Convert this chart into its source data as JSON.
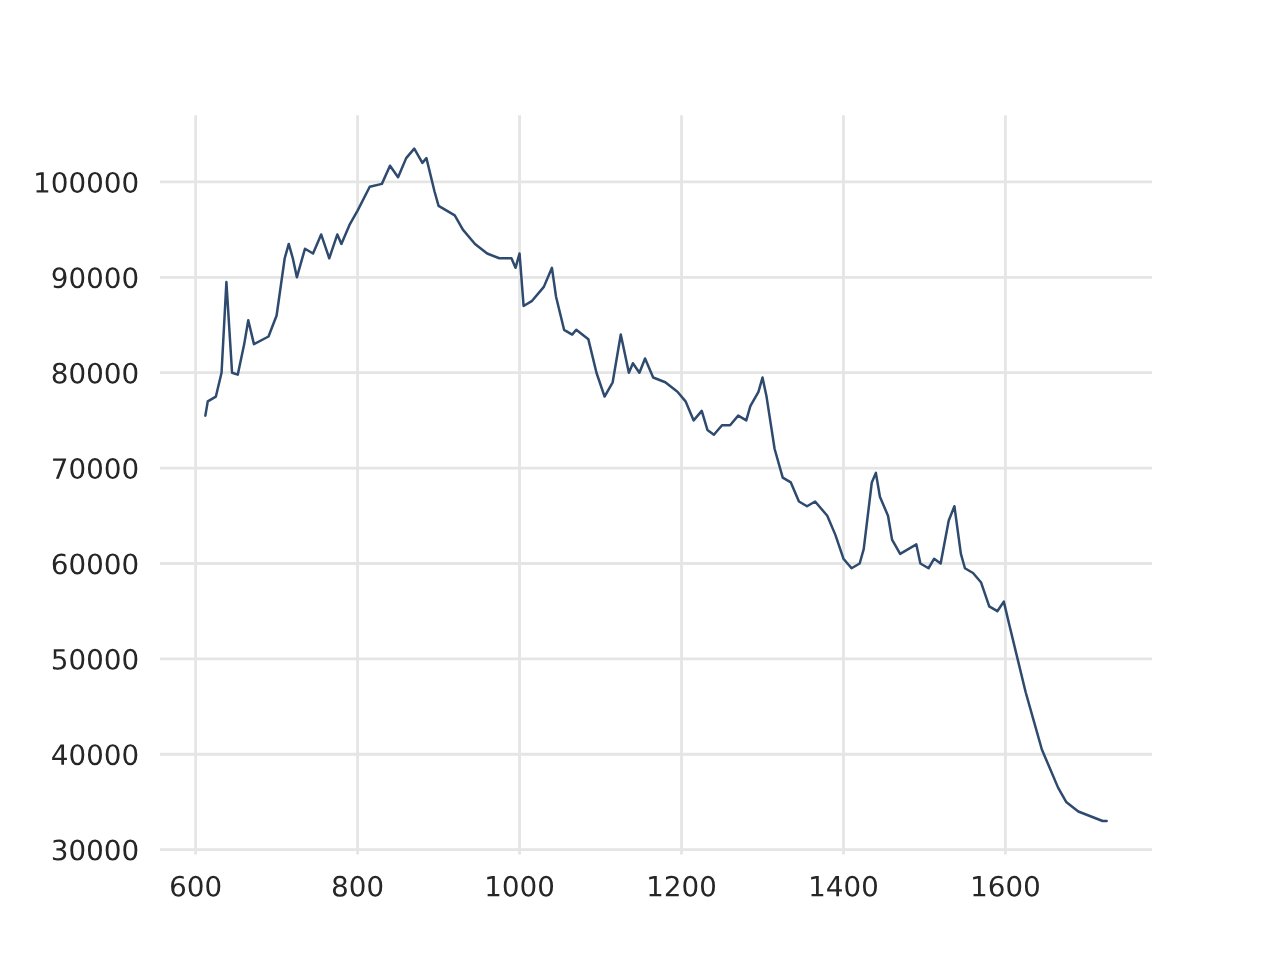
{
  "chart_data": {
    "type": "line",
    "x": [
      612,
      615,
      625,
      632,
      638,
      645,
      652,
      660,
      665,
      672,
      690,
      700,
      710,
      715,
      720,
      725,
      735,
      745,
      755,
      765,
      775,
      780,
      790,
      800,
      815,
      830,
      840,
      850,
      860,
      870,
      880,
      885,
      895,
      900,
      910,
      920,
      930,
      945,
      960,
      975,
      990,
      995,
      1000,
      1005,
      1015,
      1030,
      1040,
      1045,
      1055,
      1065,
      1070,
      1085,
      1095,
      1105,
      1115,
      1125,
      1135,
      1140,
      1148,
      1155,
      1165,
      1180,
      1195,
      1205,
      1215,
      1225,
      1232,
      1240,
      1250,
      1260,
      1270,
      1280,
      1285,
      1295,
      1300,
      1305,
      1315,
      1325,
      1335,
      1345,
      1355,
      1365,
      1380,
      1390,
      1400,
      1410,
      1420,
      1425,
      1435,
      1440,
      1445,
      1455,
      1460,
      1470,
      1480,
      1490,
      1495,
      1505,
      1512,
      1520,
      1530,
      1537,
      1545,
      1550,
      1560,
      1570,
      1580,
      1590,
      1598,
      1605,
      1615,
      1625,
      1635,
      1645,
      1655,
      1665,
      1675,
      1690,
      1705,
      1720,
      1725
    ],
    "series": [
      {
        "color": "#2e4a6e",
        "values": [
          75500,
          77000,
          77500,
          80000,
          89500,
          80000,
          79800,
          83000,
          85500,
          83000,
          83800,
          86000,
          92000,
          93500,
          92000,
          90000,
          93000,
          92500,
          94500,
          92000,
          94500,
          93500,
          95500,
          97000,
          99500,
          99800,
          101700,
          100500,
          102500,
          103500,
          102000,
          102500,
          99000,
          97500,
          97000,
          96500,
          95000,
          93500,
          92500,
          92000,
          92000,
          91000,
          92500,
          87000,
          87500,
          89000,
          91000,
          88000,
          84500,
          84000,
          84500,
          83500,
          80000,
          77500,
          79000,
          84000,
          80000,
          81000,
          80000,
          81500,
          79500,
          79000,
          78000,
          77000,
          75000,
          76000,
          74000,
          73500,
          74500,
          74500,
          75500,
          75000,
          76500,
          78000,
          79500,
          77500,
          72000,
          69000,
          68500,
          66500,
          66000,
          66500,
          65000,
          63000,
          60500,
          59500,
          60000,
          61500,
          68500,
          69500,
          67000,
          65000,
          62500,
          61000,
          61500,
          62000,
          60000,
          59500,
          60500,
          60000,
          64500,
          66000,
          61000,
          59500,
          59000,
          58000,
          55500,
          55000,
          56000,
          53500,
          50000,
          46500,
          43500,
          40500,
          38500,
          36500,
          35000,
          34000,
          33500,
          33000,
          33000
        ]
      }
    ],
    "xlim": [
      556,
      1781
    ],
    "xticks": [
      600,
      800,
      1000,
      1200,
      1400,
      1600
    ],
    "ylim": [
      29500,
      107000
    ],
    "yticks": [
      30000,
      40000,
      50000,
      60000,
      70000,
      80000,
      90000,
      100000
    ],
    "grid": true
  }
}
